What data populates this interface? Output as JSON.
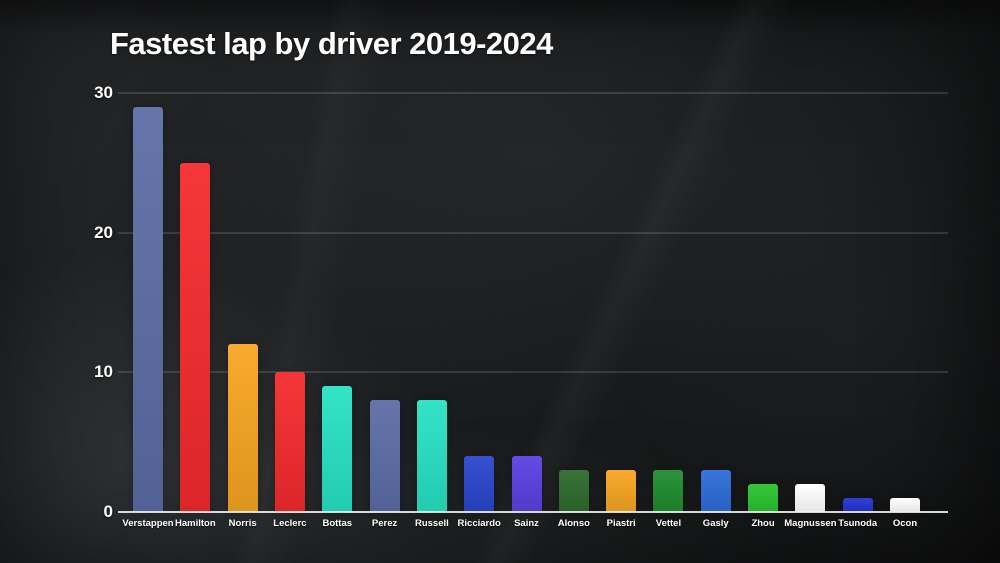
{
  "chart_data": {
    "type": "bar",
    "title": "Fastest lap by driver 2019-2024",
    "categories": [
      "Verstappen",
      "Hamilton",
      "Norris",
      "Leclerc",
      "Bottas",
      "Perez",
      "Russell",
      "Ricciardo",
      "Sainz",
      "Alonso",
      "Piastri",
      "Vettel",
      "Gasly",
      "Zhou",
      "Magnussen",
      "Tsunoda",
      "Ocon"
    ],
    "values": [
      29,
      25,
      12,
      10,
      9,
      8,
      8,
      4,
      4,
      3,
      3,
      3,
      3,
      2,
      2,
      1,
      1
    ],
    "bar_colors": [
      "#5c6da6",
      "#f42a2d",
      "#f7a521",
      "#f42a2d",
      "#27e2c3",
      "#5c6da6",
      "#27e2c3",
      "#2a46cd",
      "#5a40e2",
      "#2d6b2d",
      "#f7a521",
      "#1f8c2f",
      "#2c6cd8",
      "#2ac32e",
      "#ffffff",
      "#2334d2",
      "#ffffff"
    ],
    "xlabel": "",
    "ylabel": "",
    "ylim": [
      0,
      30
    ],
    "yticks": [
      0,
      10,
      20,
      30
    ],
    "grid": "horizontal-faint",
    "legend": "none"
  },
  "colors": {
    "background": "#1a1c1e",
    "text": "#ffffff",
    "gridline": "rgba(255,255,255,0.26)",
    "axis_line": "rgba(243,243,243,0.88)"
  }
}
